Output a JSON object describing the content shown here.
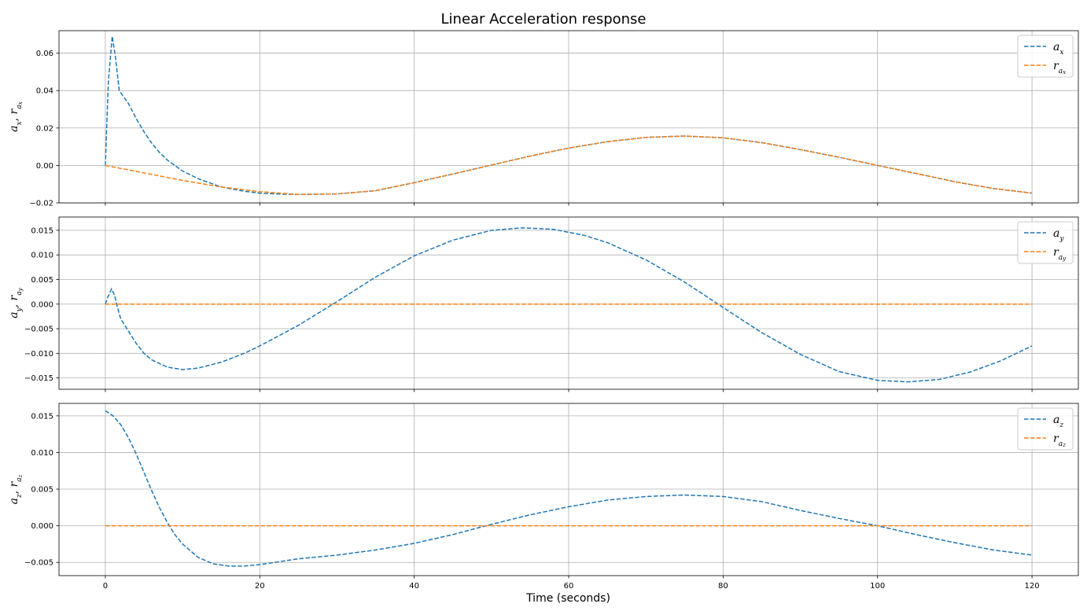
{
  "chart_data": {
    "type": "line",
    "title": "Linear Acceleration response",
    "xlabel": "Time (seconds)",
    "xlim": [
      -6,
      126
    ],
    "x_ticks": [
      0,
      20,
      40,
      60,
      80,
      100,
      120
    ],
    "colors": {
      "measured": "#1f77b4",
      "reference": "#ff7f0e"
    },
    "legend_position": "top-right",
    "grid": true,
    "subplots": [
      {
        "ylabel": {
          "base": "a",
          "sub": "x",
          "ref": "r",
          "refsub": "a",
          "refsubsub": "x"
        },
        "ylim": [
          -0.02,
          0.072
        ],
        "y_ticks": [
          -0.02,
          0.0,
          0.02,
          0.04,
          0.06
        ],
        "y_tick_labels": [
          "−0.02",
          "0.00",
          "0.02",
          "0.04",
          "0.06"
        ],
        "series": [
          {
            "name": {
              "base": "a",
              "sub": "x"
            },
            "color": "#1f77b4",
            "x": [
              0,
              0.4,
              0.9,
              1.3,
              1.8,
              2.3,
              3,
              4,
              5,
              6,
              7,
              8,
              10,
              12,
              15,
              18,
              20,
              22,
              25,
              30,
              35,
              40,
              45,
              50,
              55,
              60,
              65,
              70,
              75,
              80,
              85,
              90,
              95,
              100,
              105,
              110,
              115,
              120
            ],
            "y": [
              0,
              0.045,
              0.069,
              0.058,
              0.04,
              0.037,
              0.033,
              0.025,
              0.018,
              0.012,
              0.007,
              0.003,
              -0.003,
              -0.007,
              -0.0115,
              -0.0138,
              -0.0148,
              -0.0152,
              -0.0155,
              -0.0152,
              -0.0135,
              -0.0092,
              -0.0046,
              0.0002,
              0.005,
              0.0093,
              0.0127,
              0.015,
              0.0157,
              0.0148,
              0.0122,
              0.0085,
              0.0044,
              0.0,
              -0.0043,
              -0.0087,
              -0.0123,
              -0.0148
            ]
          },
          {
            "name": {
              "base": "r",
              "sub": "a",
              "subsub": "x"
            },
            "color": "#ff7f0e",
            "x": [
              0,
              5,
              10,
              15,
              20,
              25,
              30,
              35,
              40,
              45,
              50,
              55,
              60,
              65,
              70,
              75,
              80,
              85,
              90,
              95,
              100,
              105,
              110,
              115,
              120
            ],
            "y": [
              0,
              -0.004,
              -0.008,
              -0.0115,
              -0.014,
              -0.0155,
              -0.0152,
              -0.0135,
              -0.0092,
              -0.0046,
              0.0002,
              0.005,
              0.0093,
              0.0127,
              0.015,
              0.0157,
              0.0148,
              0.0122,
              0.0085,
              0.0044,
              0.0,
              -0.0043,
              -0.0087,
              -0.0123,
              -0.0148
            ]
          }
        ]
      },
      {
        "ylabel": {
          "base": "a",
          "sub": "y",
          "ref": "r",
          "refsub": "a",
          "refsubsub": "y"
        },
        "ylim": [
          -0.0173,
          0.0177
        ],
        "y_ticks": [
          -0.015,
          -0.01,
          -0.005,
          0.0,
          0.005,
          0.01,
          0.015
        ],
        "y_tick_labels": [
          "−0.015",
          "−0.010",
          "−0.005",
          "0.000",
          "0.005",
          "0.010",
          "0.015"
        ],
        "series": [
          {
            "name": {
              "base": "a",
              "sub": "y"
            },
            "color": "#1f77b4",
            "x": [
              0,
              0.35,
              0.8,
              1.2,
              1.6,
              2,
              3,
              4,
              5,
              6,
              8,
              10,
              12,
              15,
              18,
              20,
              25,
              30,
              35,
              40,
              45,
              50,
              54,
              58,
              62,
              65,
              70,
              75,
              80,
              85,
              90,
              95,
              100,
              104,
              108,
              112,
              116,
              120
            ],
            "y": [
              0,
              0.0015,
              0.0031,
              0.0018,
              -0.0008,
              -0.003,
              -0.0055,
              -0.008,
              -0.01,
              -0.0113,
              -0.0128,
              -0.0133,
              -0.013,
              -0.0118,
              -0.01,
              -0.0085,
              -0.0043,
              0.0005,
              0.0055,
              0.0098,
              0.013,
              0.015,
              0.0155,
              0.0152,
              0.014,
              0.0125,
              0.009,
              0.0045,
              -0.0007,
              -0.0058,
              -0.0102,
              -0.0137,
              -0.0155,
              -0.0158,
              -0.0153,
              -0.0138,
              -0.0115,
              -0.0085
            ]
          },
          {
            "name": {
              "base": "r",
              "sub": "a",
              "subsub": "y"
            },
            "color": "#ff7f0e",
            "x": [
              0,
              120
            ],
            "y": [
              0,
              0
            ]
          }
        ]
      },
      {
        "ylabel": {
          "base": "a",
          "sub": "z",
          "ref": "r",
          "refsub": "a",
          "refsubsub": "z"
        },
        "ylim": [
          -0.0068,
          0.0167
        ],
        "y_ticks": [
          -0.005,
          0.0,
          0.005,
          0.01,
          0.015
        ],
        "y_tick_labels": [
          "−0.005",
          "0.000",
          "0.005",
          "0.010",
          "0.015"
        ],
        "series": [
          {
            "name": {
              "base": "a",
              "sub": "z"
            },
            "color": "#1f77b4",
            "x": [
              0,
              1,
              2,
              3,
              4,
              5,
              6,
              7,
              8,
              9,
              10,
              12,
              14,
              16,
              18,
              20,
              25,
              30,
              35,
              40,
              45,
              50,
              55,
              60,
              65,
              70,
              75,
              80,
              85,
              90,
              95,
              100,
              105,
              110,
              115,
              120
            ],
            "y": [
              0.0157,
              0.015,
              0.0138,
              0.012,
              0.0098,
              0.0073,
              0.0048,
              0.0025,
              0.0005,
              -0.0012,
              -0.0025,
              -0.0043,
              -0.0052,
              -0.0055,
              -0.0055,
              -0.0053,
              -0.0045,
              -0.004,
              -0.0033,
              -0.0024,
              -0.0012,
              0.0002,
              0.0015,
              0.0026,
              0.0035,
              0.004,
              0.0042,
              0.004,
              0.0033,
              0.0021,
              0.001,
              0.0,
              -0.0012,
              -0.0023,
              -0.0033,
              -0.004
            ]
          },
          {
            "name": {
              "base": "r",
              "sub": "a",
              "subsub": "z"
            },
            "color": "#ff7f0e",
            "x": [
              0,
              120
            ],
            "y": [
              0,
              0
            ]
          }
        ]
      }
    ]
  }
}
